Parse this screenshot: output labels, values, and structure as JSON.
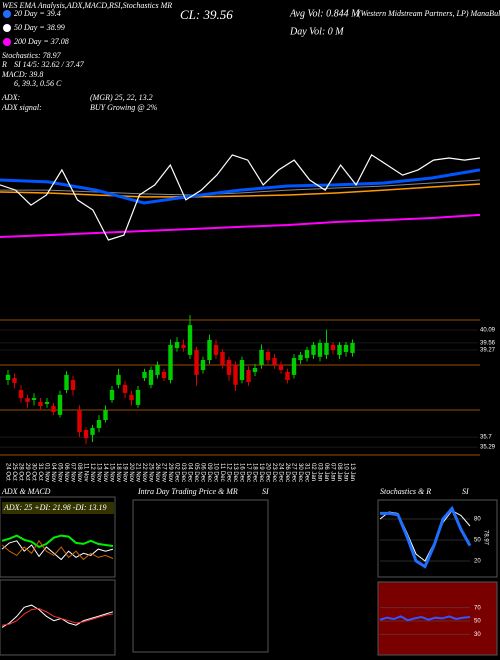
{
  "header": {
    "title": "WES EMA Analysis,ADX,MACD,RSI,Stochastics MR",
    "close": "CL: 39.56",
    "avg_vol": "Avg Vol: 0.844 M",
    "day_vol": "Day Vol: 0 M",
    "company": "(Western Midstream Partners, LP) ManaBulls.com",
    "lines": [
      "20 Day = 39.4",
      "50 Day = 38.99",
      "200 Day = 37.08",
      "Stochastics: 78.97",
      "R",
      "SI 14/5: 32.62 / 37.47",
      "MACD: 39.8",
      "6, 39.3, 0.56 C",
      "ADX:",
      "(MGR) 25, 22, 13.2",
      "ADX signal:",
      "BUY Growing @ 2%"
    ],
    "intraday_title": "Intra Day Trading Price & MR",
    "intraday_suffix": "SI"
  },
  "chart_data": [
    {
      "type": "line",
      "ylim": [
        31.4,
        51.4
      ],
      "series": [
        {
          "color": "#ff00ff",
          "width": 2,
          "values": [
            35.6,
            35.73,
            35.87,
            36.0,
            36.13,
            36.27,
            36.4,
            36.6,
            36.73,
            36.87,
            37.07
          ]
        },
        {
          "color": "#ff9900",
          "width": 1.5,
          "values": [
            38.6,
            38.53,
            38.4,
            38.27,
            38.27,
            38.33,
            38.4,
            38.53,
            38.73,
            38.93,
            39.13
          ]
        },
        {
          "color": "#888888",
          "width": 1,
          "values": [
            38.73,
            38.73,
            38.6,
            38.47,
            38.4,
            38.53,
            38.73,
            38.87,
            39.0,
            39.2,
            39.4
          ]
        },
        {
          "color": "#0055ff",
          "width": 3,
          "values": [
            39.4,
            39.27,
            38.73,
            37.87,
            38.33,
            38.73,
            39.0,
            39.07,
            39.2,
            39.53,
            40.07
          ]
        },
        {
          "color": "#ffffff",
          "width": 1.2,
          "values": [
            39.07,
            38.73,
            37.73,
            38.4,
            40.07,
            38.07,
            37.4,
            35.4,
            35.73,
            38.4,
            39.07,
            40.4,
            38.07,
            38.73,
            39.73,
            41.07,
            40.73,
            39.07,
            40.07,
            40.73,
            39.4,
            38.73,
            40.4,
            39.07,
            41.07,
            40.4,
            39.73,
            40.07,
            40.73,
            40.87,
            40.73,
            40.87
          ]
        }
      ]
    },
    {
      "type": "candlestick",
      "ylim": [
        34.76,
        40.91
      ],
      "yticks": [
        40.09,
        39.56,
        39.27,
        35.7,
        35.29
      ],
      "up_color": "#00cc00",
      "down_color": "#dd0000",
      "categories": [
        "24 Oct",
        "25 Oct",
        "28 Oct",
        "29 Oct",
        "30 Oct",
        "31 Oct",
        "01 Nov",
        "04 Nov",
        "05 Nov",
        "06 Nov",
        "07 Nov",
        "08 Nov",
        "11 Nov",
        "12 Nov",
        "13 Nov",
        "14 Nov",
        "15 Nov",
        "18 Nov",
        "19 Nov",
        "20 Nov",
        "21 Nov",
        "22 Nov",
        "25 Nov",
        "26 Nov",
        "27 Nov",
        "29 Nov",
        "02 Dec",
        "03 Dec",
        "04 Dec",
        "05 Dec",
        "06 Dec",
        "09 Dec",
        "10 Dec",
        "11 Dec",
        "12 Dec",
        "13 Dec",
        "16 Dec",
        "17 Dec",
        "18 Dec",
        "19 Dec",
        "20 Dec",
        "23 Dec",
        "24 Dec",
        "26 Dec",
        "27 Dec",
        "30 Dec",
        "31 Dec",
        "02 Jan",
        "03 Jan",
        "06 Jan",
        "07 Jan",
        "08 Jan",
        "10 Jan",
        "13 Jan"
      ],
      "open": [
        38.04,
        38.12,
        37.63,
        37.3,
        37.22,
        37.14,
        37.06,
        36.97,
        36.61,
        37.63,
        38.04,
        36.81,
        35.99,
        35.79,
        36.07,
        36.4,
        37.22,
        37.84,
        37.84,
        37.43,
        37.02,
        38.12,
        37.84,
        38.25,
        38.37,
        38.04,
        39.35,
        39.48,
        39.07,
        39.27,
        38.45,
        38.86,
        39.48,
        39.19,
        38.86,
        38.66,
        38.04,
        38.45,
        38.37,
        38.66,
        39.19,
        38.94,
        38.66,
        38.37,
        38.25,
        38.86,
        38.94,
        39.07,
        38.99,
        39.07,
        39.48,
        39.07,
        39.19,
        39.15
      ],
      "high": [
        38.45,
        38.3,
        37.84,
        37.43,
        37.5,
        37.3,
        37.3,
        37.1,
        37.6,
        38.4,
        38.2,
        37.0,
        36.1,
        36.2,
        36.6,
        37.0,
        37.8,
        38.5,
        38.0,
        37.6,
        37.8,
        38.5,
        38.6,
        38.8,
        38.5,
        39.7,
        39.8,
        39.7,
        40.7,
        39.4,
        39.0,
        39.9,
        39.7,
        39.3,
        39.0,
        38.8,
        39.0,
        38.6,
        38.7,
        39.5,
        39.3,
        39.1,
        38.8,
        38.5,
        39.1,
        39.2,
        39.4,
        39.6,
        39.7,
        40.1,
        39.6,
        39.6,
        39.6,
        39.7
      ],
      "low": [
        37.84,
        37.7,
        37.1,
        36.9,
        37.0,
        36.8,
        36.9,
        36.6,
        36.5,
        37.5,
        37.4,
        35.7,
        35.4,
        35.5,
        35.9,
        36.3,
        37.1,
        37.7,
        37.3,
        37.0,
        36.9,
        38.0,
        37.7,
        38.1,
        38.0,
        37.9,
        39.2,
        39.2,
        38.9,
        37.8,
        38.3,
        38.7,
        38.9,
        38.5,
        38.0,
        37.6,
        37.9,
        37.8,
        38.2,
        38.5,
        38.7,
        38.5,
        38.3,
        37.9,
        38.1,
        38.7,
        38.8,
        38.9,
        38.8,
        38.9,
        39.1,
        38.9,
        39.0,
        39.0
      ],
      "close": [
        38.25,
        37.92,
        37.3,
        37.14,
        37.3,
        36.97,
        37.14,
        36.73,
        37.43,
        38.25,
        37.63,
        35.91,
        35.66,
        36.07,
        36.4,
        36.81,
        37.63,
        38.25,
        37.51,
        37.22,
        37.63,
        38.37,
        38.45,
        38.66,
        38.12,
        39.48,
        39.6,
        39.35,
        40.29,
        38.25,
        38.86,
        39.68,
        39.07,
        38.66,
        38.25,
        37.84,
        38.86,
        37.96,
        38.53,
        39.27,
        38.86,
        38.66,
        38.45,
        38.04,
        38.94,
        39.07,
        39.27,
        39.48,
        39.56,
        39.56,
        39.27,
        39.48,
        39.48,
        39.56
      ]
    },
    {
      "type": "line",
      "title": "ADX & MACD",
      "label": "ADX: 25 +DI: 21.98 -DI: 13.19",
      "ylim": [
        0,
        50
      ],
      "series": [
        {
          "color": "#00ee00",
          "width": 2,
          "values": [
            30,
            32,
            35,
            31,
            29,
            24,
            27,
            33,
            35,
            34,
            28,
            27,
            30,
            27,
            26,
            25
          ]
        },
        {
          "color": "#ffffff",
          "width": 1,
          "values": [
            22,
            28,
            30,
            20,
            26,
            15,
            24,
            18,
            12,
            20,
            14,
            18,
            16,
            22,
            20,
            22
          ]
        },
        {
          "color": "#cc6600",
          "width": 1,
          "values": [
            26,
            20,
            16,
            24,
            18,
            30,
            20,
            16,
            24,
            14,
            20,
            12,
            18,
            14,
            16,
            13
          ]
        }
      ]
    },
    {
      "type": "line",
      "ylim": [
        -1.5,
        1.5
      ],
      "series": [
        {
          "color": "#ffffff",
          "width": 1,
          "values": [
            -0.4,
            -0.2,
            0.1,
            0.5,
            0.6,
            0.4,
            0.1,
            -0.1,
            0.0,
            -0.2,
            -0.3,
            -0.1,
            0.0,
            0.1,
            0.2,
            0.3
          ]
        },
        {
          "color": "#ff3333",
          "width": 1,
          "values": [
            -0.3,
            -0.25,
            -0.1,
            0.2,
            0.4,
            0.45,
            0.3,
            0.1,
            0.0,
            -0.1,
            -0.2,
            -0.15,
            -0.05,
            0.05,
            0.15,
            0.2
          ]
        }
      ]
    },
    {
      "type": "line",
      "title": "Stochastics & R",
      "title_suffix": "SI",
      "annotation": "78.97",
      "ylim": [
        0,
        100
      ],
      "yticks": [
        80,
        50,
        20
      ],
      "series": [
        {
          "color": "#ffffff",
          "width": 1,
          "values": [
            80,
            90,
            88,
            60,
            30,
            20,
            45,
            75,
            92,
            85,
            70
          ]
        },
        {
          "color": "#1f6fff",
          "width": 3,
          "values": [
            88,
            88,
            86,
            55,
            20,
            12,
            42,
            80,
            95,
            65,
            42
          ]
        }
      ]
    },
    {
      "type": "line",
      "ylim": [
        0,
        100
      ],
      "yticks": [
        70,
        50,
        30
      ],
      "series": [
        {
          "color": "#3355ff",
          "width": 2,
          "values": [
            52,
            55,
            53,
            57,
            51,
            54,
            56,
            52,
            55,
            54,
            57,
            53,
            55,
            56
          ]
        }
      ]
    }
  ]
}
